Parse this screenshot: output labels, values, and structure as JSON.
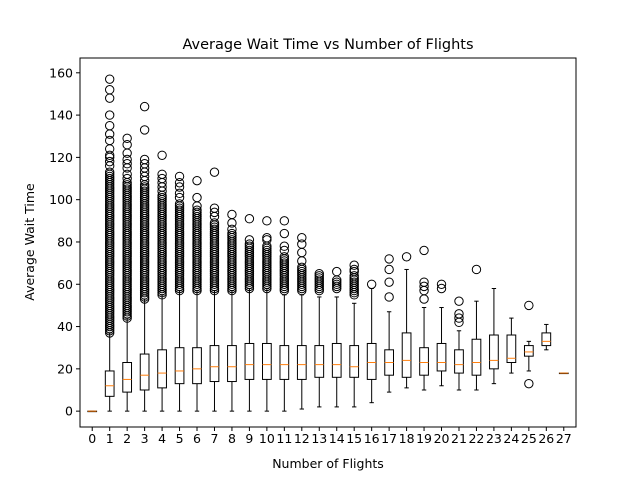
{
  "chart_data": {
    "type": "box",
    "title": "Average Wait Time vs Number of Flights",
    "xlabel": "Number of Flights",
    "ylabel": "Average Wait Time",
    "ylim": [
      -7.5,
      167
    ],
    "yticks": [
      0,
      20,
      40,
      60,
      80,
      100,
      120,
      140,
      160
    ],
    "categories": [
      "0",
      "1",
      "2",
      "3",
      "4",
      "5",
      "6",
      "7",
      "8",
      "9",
      "10",
      "11",
      "12",
      "13",
      "14",
      "15",
      "16",
      "17",
      "18",
      "19",
      "20",
      "21",
      "22",
      "23",
      "24",
      "25",
      "26",
      "27"
    ],
    "grid": false,
    "colors": {
      "box": "#000000",
      "median": "#ff7f0e",
      "outlier": "#000000",
      "background": "#ffffff"
    },
    "boxes": [
      {
        "x": "0",
        "q1": 0,
        "median": 0,
        "q3": 0,
        "whislo": 0,
        "whishi": 0,
        "fliers_min": 0,
        "fliers_max": 0,
        "fliers": []
      },
      {
        "x": "1",
        "q1": 7,
        "median": 12,
        "q3": 19,
        "whislo": 0,
        "whishi": 37,
        "fliers_min": 37,
        "fliers_max": 113,
        "fliers": [
          116,
          118,
          120,
          121,
          124,
          128,
          131,
          135,
          140,
          148,
          152,
          157
        ]
      },
      {
        "x": "2",
        "q1": 9,
        "median": 15,
        "q3": 23,
        "whislo": 0,
        "whishi": 44,
        "fliers_min": 44,
        "fliers_max": 108,
        "fliers": [
          110,
          112,
          115,
          117,
          119,
          122,
          126,
          129
        ]
      },
      {
        "x": "3",
        "q1": 10,
        "median": 17,
        "q3": 27,
        "whislo": 0,
        "whishi": 53,
        "fliers_min": 53,
        "fliers_max": 107,
        "fliers": [
          109,
          111,
          113,
          115,
          117,
          119,
          133,
          144
        ]
      },
      {
        "x": "4",
        "q1": 11,
        "median": 18,
        "q3": 29,
        "whislo": 0,
        "whishi": 55,
        "fliers_min": 55,
        "fliers_max": 102,
        "fliers": [
          104,
          106,
          108,
          110,
          112,
          121
        ]
      },
      {
        "x": "5",
        "q1": 13,
        "median": 19,
        "q3": 30,
        "whislo": 0,
        "whishi": 57,
        "fliers_min": 57,
        "fliers_max": 98,
        "fliers": [
          101,
          103,
          106,
          108,
          111
        ]
      },
      {
        "x": "6",
        "q1": 13,
        "median": 20,
        "q3": 30,
        "whislo": 0,
        "whishi": 57,
        "fliers_min": 57,
        "fliers_max": 95,
        "fliers": [
          97,
          101,
          109
        ]
      },
      {
        "x": "7",
        "q1": 14,
        "median": 21,
        "q3": 31,
        "whislo": 0,
        "whishi": 57,
        "fliers_min": 57,
        "fliers_max": 89,
        "fliers": [
          92,
          94,
          96,
          113
        ]
      },
      {
        "x": "8",
        "q1": 14,
        "median": 21,
        "q3": 31,
        "whislo": 0,
        "whishi": 57,
        "fliers_min": 57,
        "fliers_max": 84,
        "fliers": [
          86,
          89,
          93
        ]
      },
      {
        "x": "9",
        "q1": 15,
        "median": 22,
        "q3": 32,
        "whislo": 0,
        "whishi": 58,
        "fliers_min": 58,
        "fliers_max": 79,
        "fliers": [
          81,
          91
        ]
      },
      {
        "x": "10",
        "q1": 15,
        "median": 22,
        "q3": 32,
        "whislo": 0,
        "whishi": 58,
        "fliers_min": 58,
        "fliers_max": 78,
        "fliers": [
          81,
          82,
          90
        ]
      },
      {
        "x": "11",
        "q1": 15,
        "median": 22,
        "q3": 31,
        "whislo": 0,
        "whishi": 55,
        "fliers_min": 57,
        "fliers_max": 73,
        "fliers": [
          76,
          78,
          84,
          90
        ]
      },
      {
        "x": "12",
        "q1": 15,
        "median": 22,
        "q3": 31,
        "whislo": 1,
        "whishi": 55,
        "fliers_min": 57,
        "fliers_max": 68,
        "fliers": [
          71,
          75,
          79,
          82
        ]
      },
      {
        "x": "13",
        "q1": 16,
        "median": 22,
        "q3": 31,
        "whislo": 2,
        "whishi": 54,
        "fliers_min": 57,
        "fliers_max": 64,
        "fliers": [
          65
        ]
      },
      {
        "x": "14",
        "q1": 16,
        "median": 22,
        "q3": 32,
        "whislo": 2,
        "whishi": 54,
        "fliers_min": 58,
        "fliers_max": 62,
        "fliers": [
          66
        ]
      },
      {
        "x": "15",
        "q1": 16,
        "median": 21,
        "q3": 31,
        "whislo": 2,
        "whishi": 51,
        "fliers_min": 55,
        "fliers_max": 64,
        "fliers": [
          66,
          67,
          69
        ]
      },
      {
        "x": "16",
        "q1": 15,
        "median": 23,
        "q3": 32,
        "whislo": 4,
        "whishi": 58,
        "fliers_min": 60,
        "fliers_max": 60,
        "fliers": []
      },
      {
        "x": "17",
        "q1": 17,
        "median": 23,
        "q3": 29,
        "whislo": 9,
        "whishi": 47,
        "fliers_min": 54,
        "fliers_max": 54,
        "fliers": [
          61,
          67,
          72
        ]
      },
      {
        "x": "18",
        "q1": 16,
        "median": 24,
        "q3": 37,
        "whislo": 11,
        "whishi": 67,
        "fliers_min": 73,
        "fliers_max": 73,
        "fliers": []
      },
      {
        "x": "19",
        "q1": 17,
        "median": 23,
        "q3": 30,
        "whislo": 10,
        "whishi": 49,
        "fliers_min": 53,
        "fliers_max": 53,
        "fliers": [
          57,
          59,
          61,
          76
        ]
      },
      {
        "x": "20",
        "q1": 19,
        "median": 23,
        "q3": 32,
        "whislo": 12,
        "whishi": 49,
        "fliers_min": 58,
        "fliers_max": 58,
        "fliers": [
          60
        ]
      },
      {
        "x": "21",
        "q1": 18,
        "median": 22,
        "q3": 29,
        "whislo": 10,
        "whishi": 38,
        "fliers_min": 42,
        "fliers_max": 42,
        "fliers": [
          44,
          46,
          52
        ]
      },
      {
        "x": "22",
        "q1": 17,
        "median": 23,
        "q3": 34,
        "whislo": 10,
        "whishi": 52,
        "fliers_min": 67,
        "fliers_max": 67,
        "fliers": []
      },
      {
        "x": "23",
        "q1": 20,
        "median": 24,
        "q3": 36,
        "whislo": 13,
        "whishi": 58,
        "fliers_min": 0,
        "fliers_max": 0,
        "fliers": []
      },
      {
        "x": "24",
        "q1": 23,
        "median": 25,
        "q3": 36,
        "whislo": 18,
        "whishi": 44,
        "fliers_min": 0,
        "fliers_max": 0,
        "fliers": []
      },
      {
        "x": "25",
        "q1": 26,
        "median": 28,
        "q3": 31,
        "whislo": 19,
        "whishi": 33,
        "fliers_min": 50,
        "fliers_max": 50,
        "fliers": [
          13
        ]
      },
      {
        "x": "26",
        "q1": 31,
        "median": 33,
        "q3": 37,
        "whislo": 29,
        "whishi": 41,
        "fliers_min": 0,
        "fliers_max": 0,
        "fliers": []
      },
      {
        "x": "27",
        "q1": 18,
        "median": 18,
        "q3": 18,
        "whislo": 18,
        "whishi": 18,
        "fliers_min": 0,
        "fliers_max": 0,
        "fliers": []
      }
    ]
  }
}
